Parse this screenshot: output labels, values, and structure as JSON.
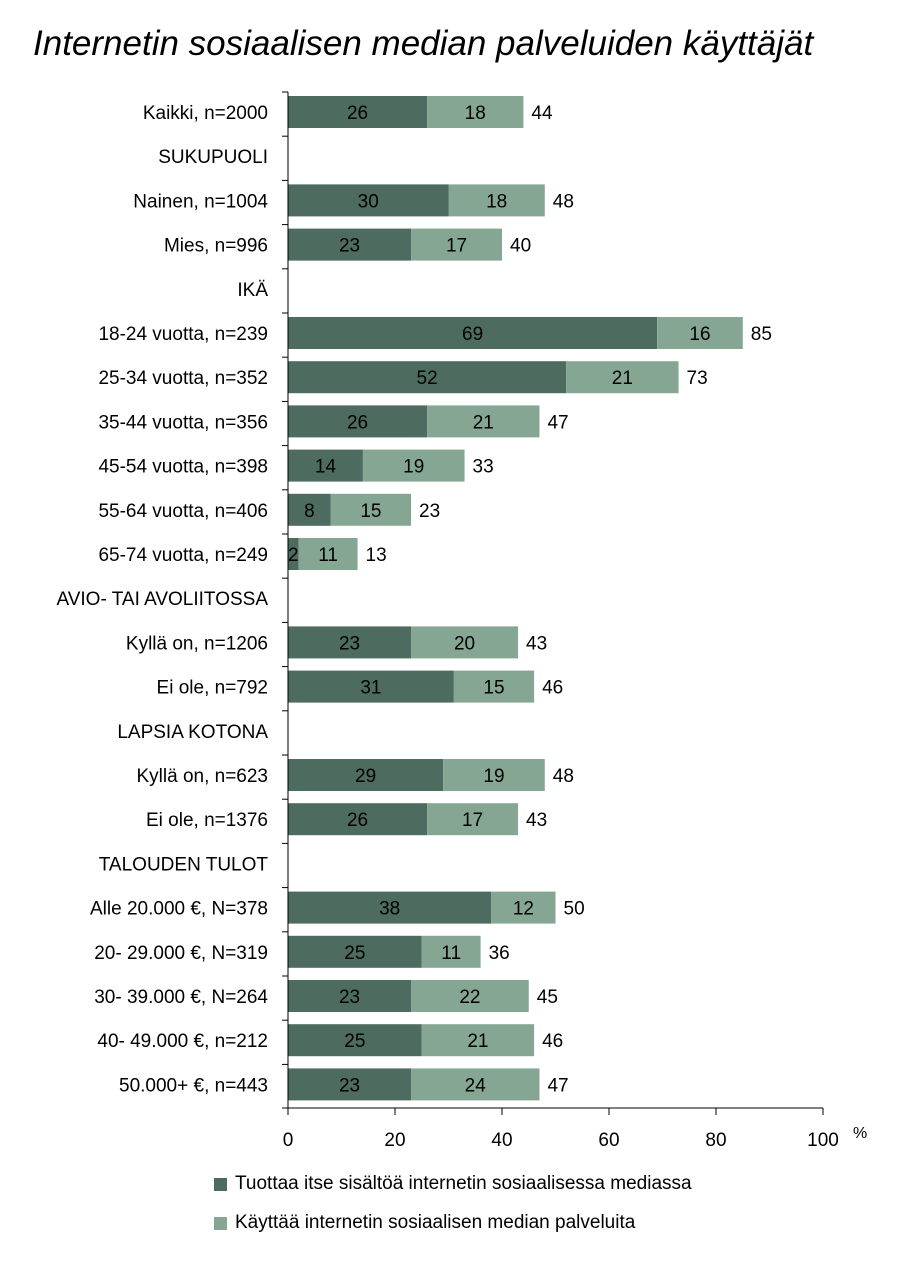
{
  "title": "Internetin sosiaalisen median palveluiden käyttäjät",
  "colors": {
    "series1": "#4d6b5e",
    "series2": "#86a694"
  },
  "chart_data": {
    "type": "bar",
    "orientation": "horizontal",
    "stacked": true,
    "title": "Internetin sosiaalisen median palveluiden käyttäjät",
    "unit_label": "%",
    "xlim": [
      0,
      100
    ],
    "xticks": [
      0,
      20,
      40,
      60,
      80,
      100
    ],
    "categories": [
      "Kaikki, n=2000",
      "SUKUPUOLI",
      "Nainen, n=1004",
      "Mies, n=996",
      "IKÄ",
      "18-24 vuotta, n=239",
      "25-34 vuotta, n=352",
      "35-44 vuotta, n=356",
      "45-54 vuotta, n=398",
      "55-64 vuotta, n=406",
      "65-74 vuotta, n=249",
      "AVIO- TAI AVOLIITOSSA",
      "Kyllä on, n=1206",
      "Ei ole, n=792",
      "LAPSIA KOTONA",
      "Kyllä on, n=623",
      "Ei ole, n=1376",
      "TALOUDEN TULOT",
      "Alle 20.000 €, N=378",
      "20- 29.000 €, N=319",
      "30- 39.000 €, N=264",
      "40- 49.000 €, n=212",
      "50.000+ €, n=443"
    ],
    "series": [
      {
        "name": "Tuottaa itse sisältöä internetin sosiaalisessa mediassa",
        "values": [
          26,
          null,
          30,
          23,
          null,
          69,
          52,
          26,
          14,
          8,
          2,
          null,
          23,
          31,
          null,
          29,
          26,
          null,
          38,
          25,
          23,
          25,
          23
        ]
      },
      {
        "name": "Käyttää internetin sosiaalisen median palveluita",
        "values": [
          18,
          null,
          18,
          17,
          null,
          16,
          21,
          21,
          19,
          15,
          11,
          null,
          20,
          15,
          null,
          19,
          17,
          null,
          12,
          11,
          22,
          21,
          24
        ]
      }
    ],
    "totals": [
      44,
      null,
      48,
      40,
      null,
      85,
      73,
      47,
      33,
      23,
      13,
      null,
      43,
      46,
      null,
      48,
      43,
      null,
      50,
      36,
      45,
      46,
      47
    ],
    "legend": "bottom",
    "grid": false
  }
}
